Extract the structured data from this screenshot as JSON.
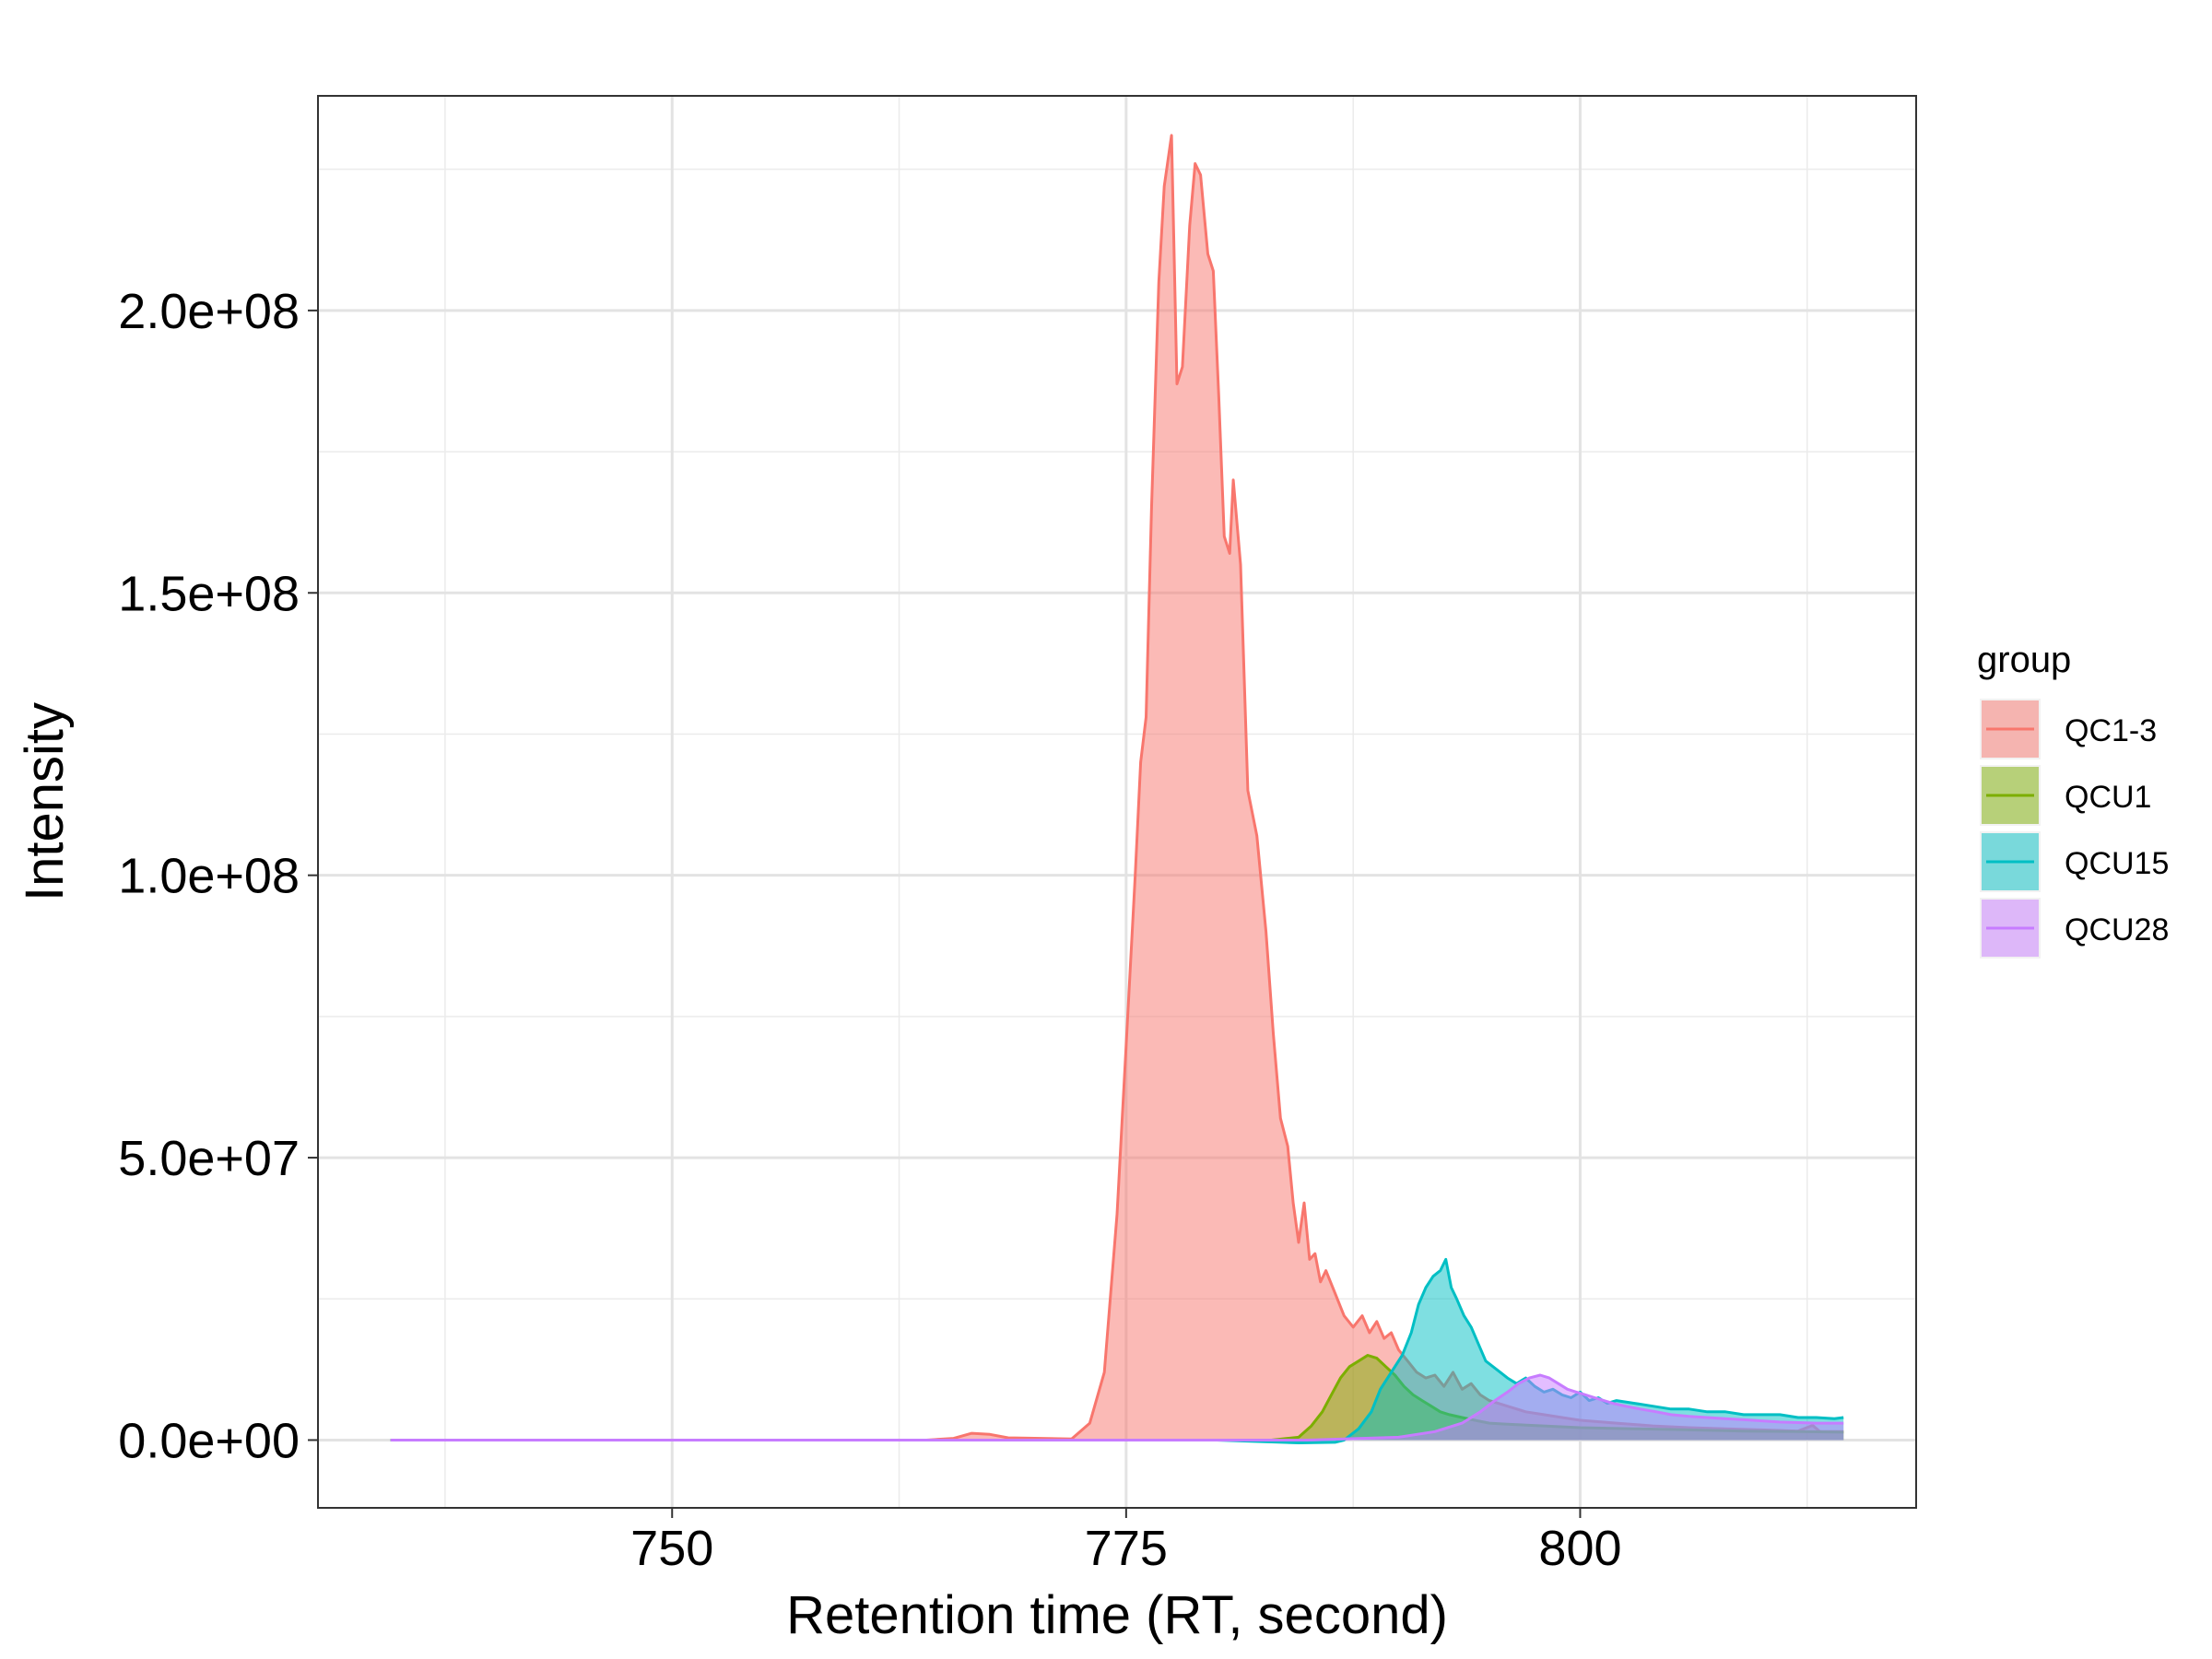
{
  "chart_data": {
    "type": "area",
    "title": "",
    "xlabel": "Retention time (RT, second)",
    "ylabel": "Intensity",
    "xlim": [
      730.5,
      818.5
    ],
    "ylim": [
      -12000000,
      238000000
    ],
    "x_ticks": [
      750,
      775,
      800
    ],
    "x_tick_labels": [
      "750",
      "775",
      "800"
    ],
    "x_minor_ticks": [
      737.5,
      762.5,
      787.5,
      812.5
    ],
    "y_ticks": [
      0,
      50000000,
      100000000,
      150000000,
      200000000
    ],
    "y_tick_labels": [
      "0.0e+00",
      "5.0e+07",
      "1.0e+08",
      "1.5e+08",
      "2.0e+08"
    ],
    "y_minor_ticks": [
      25000000,
      75000000,
      125000000,
      175000000,
      225000000
    ],
    "grid": true,
    "legend": {
      "title": "group",
      "position": "right"
    },
    "fill_opacity": 0.5,
    "series": [
      {
        "name": "QC1-3",
        "color": "#F8766D",
        "points": [
          [
            734.5,
            0
          ],
          [
            750,
            0
          ],
          [
            764,
            0
          ],
          [
            765.5,
            300000
          ],
          [
            766.5,
            1200000
          ],
          [
            767.5,
            1000000
          ],
          [
            768.5,
            400000
          ],
          [
            772,
            200000
          ],
          [
            773,
            3000000
          ],
          [
            773.8,
            12000000
          ],
          [
            774.5,
            40000000
          ],
          [
            775,
            70000000
          ],
          [
            775.5,
            100000000
          ],
          [
            775.8,
            120000000
          ],
          [
            776.1,
            128000000
          ],
          [
            776.4,
            165000000
          ],
          [
            776.8,
            205000000
          ],
          [
            777.1,
            222000000
          ],
          [
            777.5,
            231000000
          ],
          [
            777.8,
            187000000
          ],
          [
            778.1,
            190000000
          ],
          [
            778.5,
            215000000
          ],
          [
            778.8,
            226000000
          ],
          [
            779.1,
            224000000
          ],
          [
            779.5,
            210000000
          ],
          [
            779.8,
            207000000
          ],
          [
            780.1,
            185000000
          ],
          [
            780.4,
            160000000
          ],
          [
            780.7,
            157000000
          ],
          [
            780.9,
            170000000
          ],
          [
            781.3,
            155000000
          ],
          [
            781.7,
            115000000
          ],
          [
            782.2,
            107000000
          ],
          [
            782.7,
            90000000
          ],
          [
            783.1,
            72000000
          ],
          [
            783.5,
            57000000
          ],
          [
            783.9,
            52000000
          ],
          [
            784.2,
            42000000
          ],
          [
            784.5,
            35000000
          ],
          [
            784.8,
            42000000
          ],
          [
            785.1,
            32000000
          ],
          [
            785.4,
            33000000
          ],
          [
            785.7,
            28000000
          ],
          [
            786,
            30000000
          ],
          [
            786.5,
            26000000
          ],
          [
            787,
            22000000
          ],
          [
            787.5,
            20000000
          ],
          [
            788,
            22000000
          ],
          [
            788.4,
            19000000
          ],
          [
            788.8,
            21000000
          ],
          [
            789.2,
            18000000
          ],
          [
            789.6,
            19000000
          ],
          [
            790,
            16000000
          ],
          [
            790.5,
            14000000
          ],
          [
            791,
            12000000
          ],
          [
            791.5,
            11000000
          ],
          [
            792,
            11500000
          ],
          [
            792.5,
            9500000
          ],
          [
            793,
            12000000
          ],
          [
            793.5,
            9000000
          ],
          [
            794,
            10000000
          ],
          [
            794.5,
            8000000
          ],
          [
            795,
            7000000
          ],
          [
            796,
            6000000
          ],
          [
            797,
            5000000
          ],
          [
            798,
            4500000
          ],
          [
            799,
            4000000
          ],
          [
            800,
            3500000
          ],
          [
            802,
            3000000
          ],
          [
            804,
            2500000
          ],
          [
            806,
            2200000
          ],
          [
            808,
            2000000
          ],
          [
            810,
            1800000
          ],
          [
            812,
            1600000
          ],
          [
            812.8,
            2600000
          ],
          [
            813.2,
            1500000
          ],
          [
            814.5,
            1500000
          ]
        ]
      },
      {
        "name": "QCU1",
        "color": "#7CAE00",
        "points": [
          [
            734.5,
            0
          ],
          [
            783,
            0
          ],
          [
            784.5,
            500000
          ],
          [
            785.2,
            2500000
          ],
          [
            785.8,
            5000000
          ],
          [
            786.3,
            8000000
          ],
          [
            786.8,
            11000000
          ],
          [
            787.3,
            13000000
          ],
          [
            787.8,
            14000000
          ],
          [
            788.3,
            15000000
          ],
          [
            788.8,
            14500000
          ],
          [
            789.3,
            13000000
          ],
          [
            789.8,
            11500000
          ],
          [
            790.3,
            9500000
          ],
          [
            790.8,
            8000000
          ],
          [
            791.3,
            7000000
          ],
          [
            791.8,
            6000000
          ],
          [
            792.3,
            5000000
          ],
          [
            792.8,
            4500000
          ],
          [
            793.5,
            4000000
          ],
          [
            794.2,
            3500000
          ],
          [
            795,
            3000000
          ],
          [
            796,
            2800000
          ],
          [
            798,
            2500000
          ],
          [
            800,
            2200000
          ],
          [
            803,
            2000000
          ],
          [
            806,
            1800000
          ],
          [
            809,
            1600000
          ],
          [
            812,
            1500000
          ],
          [
            814.5,
            1400000
          ]
        ]
      },
      {
        "name": "QCU15",
        "color": "#00BFC4",
        "points": [
          [
            734.5,
            0
          ],
          [
            780,
            0
          ],
          [
            784.5,
            -500000
          ],
          [
            786.5,
            -400000
          ],
          [
            787,
            0
          ],
          [
            787.8,
            2000000
          ],
          [
            788.5,
            5000000
          ],
          [
            789,
            9000000
          ],
          [
            789.6,
            12000000
          ],
          [
            790.2,
            15000000
          ],
          [
            790.7,
            19000000
          ],
          [
            791.1,
            24000000
          ],
          [
            791.5,
            27000000
          ],
          [
            791.9,
            29000000
          ],
          [
            792.3,
            30000000
          ],
          [
            792.6,
            32000000
          ],
          [
            792.9,
            27000000
          ],
          [
            793.2,
            25000000
          ],
          [
            793.6,
            22000000
          ],
          [
            794,
            20000000
          ],
          [
            794.4,
            17000000
          ],
          [
            794.8,
            14000000
          ],
          [
            795.2,
            13000000
          ],
          [
            795.6,
            12000000
          ],
          [
            796,
            11000000
          ],
          [
            796.5,
            10000000
          ],
          [
            797,
            11000000
          ],
          [
            797.5,
            9500000
          ],
          [
            798,
            8500000
          ],
          [
            798.5,
            9000000
          ],
          [
            799,
            8000000
          ],
          [
            799.5,
            7500000
          ],
          [
            800,
            8500000
          ],
          [
            800.5,
            7000000
          ],
          [
            801,
            7500000
          ],
          [
            801.5,
            6500000
          ],
          [
            802,
            7000000
          ],
          [
            803,
            6500000
          ],
          [
            804,
            6000000
          ],
          [
            805,
            5500000
          ],
          [
            806,
            5500000
          ],
          [
            807,
            5000000
          ],
          [
            808,
            5000000
          ],
          [
            809,
            4500000
          ],
          [
            810,
            4500000
          ],
          [
            811,
            4500000
          ],
          [
            812,
            4000000
          ],
          [
            813,
            4000000
          ],
          [
            814,
            3800000
          ],
          [
            814.5,
            4000000
          ]
        ]
      },
      {
        "name": "QCU28",
        "color": "#C77CFF",
        "points": [
          [
            734.5,
            0
          ],
          [
            785,
            0
          ],
          [
            790,
            500000
          ],
          [
            792,
            1500000
          ],
          [
            793.5,
            3000000
          ],
          [
            794.5,
            5000000
          ],
          [
            795.3,
            7000000
          ],
          [
            796,
            8500000
          ],
          [
            796.6,
            10000000
          ],
          [
            797.2,
            11000000
          ],
          [
            797.8,
            11500000
          ],
          [
            798.3,
            11000000
          ],
          [
            798.8,
            10000000
          ],
          [
            799.3,
            9000000
          ],
          [
            799.8,
            8500000
          ],
          [
            800.3,
            8000000
          ],
          [
            800.8,
            7500000
          ],
          [
            801.3,
            7000000
          ],
          [
            801.8,
            6500000
          ],
          [
            802.5,
            6000000
          ],
          [
            803.3,
            5500000
          ],
          [
            804.2,
            5000000
          ],
          [
            805,
            4500000
          ],
          [
            806,
            4200000
          ],
          [
            807,
            4000000
          ],
          [
            808,
            3800000
          ],
          [
            809,
            3600000
          ],
          [
            810,
            3400000
          ],
          [
            811,
            3200000
          ],
          [
            812,
            3100000
          ],
          [
            813,
            3000000
          ],
          [
            814.5,
            3000000
          ]
        ]
      }
    ]
  }
}
